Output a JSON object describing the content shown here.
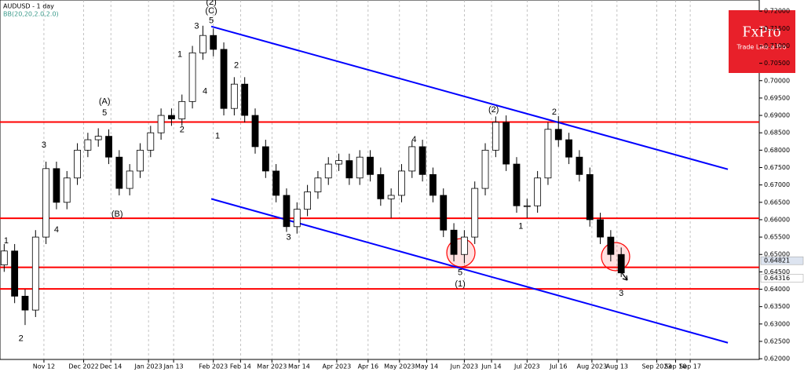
{
  "chart_data": {
    "type": "candlestick",
    "title": "AUDUSD - 1 day",
    "subtitle": "BB(20,20,2.0,2.0)",
    "x": [
      "2022-10-24",
      "2022-10-29",
      "2022-11-03",
      "2022-11-08",
      "2022-11-13",
      "2022-11-18",
      "2022-11-23",
      "2022-11-28",
      "2022-12-03",
      "2022-12-08",
      "2022-12-13",
      "2022-12-18",
      "2022-12-23",
      "2022-12-28",
      "2023-01-02",
      "2023-01-07",
      "2023-01-12",
      "2023-01-17",
      "2023-01-22",
      "2023-01-27",
      "2023-02-01",
      "2023-02-06",
      "2023-02-11",
      "2023-02-16",
      "2023-02-21",
      "2023-02-26",
      "2023-03-03",
      "2023-03-08",
      "2023-03-13",
      "2023-03-18",
      "2023-03-23",
      "2023-03-28",
      "2023-04-02",
      "2023-04-07",
      "2023-04-12",
      "2023-04-17",
      "2023-04-22",
      "2023-04-27",
      "2023-05-02",
      "2023-05-07",
      "2023-05-12",
      "2023-05-17",
      "2023-05-22",
      "2023-05-27",
      "2023-06-01",
      "2023-06-06",
      "2023-06-11",
      "2023-06-16",
      "2023-06-21",
      "2023-06-26",
      "2023-07-01",
      "2023-07-06",
      "2023-07-11",
      "2023-07-16",
      "2023-07-21",
      "2023-07-26",
      "2023-07-31",
      "2023-08-05",
      "2023-08-10",
      "2023-08-15"
    ],
    "open": [
      0.647,
      0.651,
      0.638,
      0.634,
      0.655,
      0.6747,
      0.665,
      0.672,
      0.68,
      0.683,
      0.684,
      0.678,
      0.669,
      0.674,
      0.68,
      0.685,
      0.69,
      0.689,
      0.694,
      0.708,
      0.713,
      0.709,
      0.692,
      0.699,
      0.69,
      0.681,
      0.674,
      0.667,
      0.658,
      0.663,
      0.668,
      0.672,
      0.676,
      0.677,
      0.672,
      0.678,
      0.673,
      0.666,
      0.667,
      0.674,
      0.681,
      0.673,
      0.667,
      0.657,
      0.65,
      0.655,
      0.669,
      0.68,
      0.688,
      0.676,
      0.664,
      0.664,
      0.672,
      0.686,
      0.683,
      0.678,
      0.673,
      0.66,
      0.655,
      0.65
    ],
    "high": [
      0.653,
      0.653,
      0.64,
      0.657,
      0.6767,
      0.6767,
      0.674,
      0.682,
      0.685,
      0.6863,
      0.686,
      0.68,
      0.676,
      0.682,
      0.687,
      0.692,
      0.692,
      0.696,
      0.71,
      0.7158,
      0.715,
      0.711,
      0.701,
      0.701,
      0.692,
      0.683,
      0.676,
      0.669,
      0.665,
      0.67,
      0.674,
      0.678,
      0.679,
      0.679,
      0.68,
      0.68,
      0.675,
      0.669,
      0.676,
      0.6827,
      0.683,
      0.675,
      0.669,
      0.659,
      0.657,
      0.671,
      0.682,
      0.6897,
      0.69,
      0.678,
      0.666,
      0.674,
      0.688,
      0.6898,
      0.685,
      0.68,
      0.675,
      0.662,
      0.657,
      0.652
    ],
    "low": [
      0.645,
      0.636,
      0.6297,
      0.632,
      0.653,
      0.663,
      0.663,
      0.67,
      0.678,
      0.681,
      0.676,
      0.667,
      0.667,
      0.672,
      0.678,
      0.683,
      0.687,
      0.687,
      0.692,
      0.706,
      0.707,
      0.69,
      0.69,
      0.688,
      0.679,
      0.672,
      0.665,
      0.6565,
      0.656,
      0.661,
      0.666,
      0.67,
      0.674,
      0.67,
      0.67,
      0.671,
      0.664,
      0.6605,
      0.665,
      0.672,
      0.671,
      0.665,
      0.655,
      0.648,
      0.6475,
      0.653,
      0.667,
      0.678,
      0.674,
      0.662,
      0.6605,
      0.662,
      0.67,
      0.681,
      0.676,
      0.671,
      0.658,
      0.653,
      0.648,
      0.6435
    ],
    "close": [
      0.651,
      0.638,
      0.634,
      0.655,
      0.6747,
      0.665,
      0.672,
      0.68,
      0.683,
      0.684,
      0.678,
      0.669,
      0.674,
      0.68,
      0.685,
      0.69,
      0.689,
      0.694,
      0.708,
      0.713,
      0.709,
      0.692,
      0.699,
      0.69,
      0.681,
      0.674,
      0.667,
      0.658,
      0.663,
      0.668,
      0.672,
      0.676,
      0.677,
      0.672,
      0.678,
      0.673,
      0.666,
      0.667,
      0.674,
      0.681,
      0.673,
      0.667,
      0.657,
      0.65,
      0.655,
      0.669,
      0.68,
      0.688,
      0.676,
      0.664,
      0.664,
      0.672,
      0.686,
      0.683,
      0.678,
      0.673,
      0.66,
      0.655,
      0.65,
      0.6447
    ],
    "xlim": [
      "2022-10-22",
      "2023-10-20"
    ],
    "xticks": [
      {
        "value": "2022-11-12",
        "label": "Nov 12"
      },
      {
        "value": "2022-12-01",
        "label": "Dec 2022"
      },
      {
        "value": "2022-12-14",
        "label": "Dec 14"
      },
      {
        "value": "2023-01-01",
        "label": "Jan 2023"
      },
      {
        "value": "2023-01-13",
        "label": "Jan 13"
      },
      {
        "value": "2023-02-01",
        "label": "Feb 2023"
      },
      {
        "value": "2023-02-14",
        "label": "Feb 14"
      },
      {
        "value": "2023-03-01",
        "label": "Mar 2023"
      },
      {
        "value": "2023-03-14",
        "label": "Mar 14"
      },
      {
        "value": "2023-04-01",
        "label": "Apr 2023"
      },
      {
        "value": "2023-04-16",
        "label": "Apr 16"
      },
      {
        "value": "2023-05-01",
        "label": "May 2023"
      },
      {
        "value": "2023-05-14",
        "label": "May 14"
      },
      {
        "value": "2023-06-01",
        "label": "Jun 2023"
      },
      {
        "value": "2023-06-14",
        "label": "Jun 14"
      },
      {
        "value": "2023-07-01",
        "label": "Jul 2023"
      },
      {
        "value": "2023-07-16",
        "label": "Jul 16"
      },
      {
        "value": "2023-08-01",
        "label": "Aug 2023"
      },
      {
        "value": "2023-08-13",
        "label": "Aug 13"
      },
      {
        "value": "2023-09-01",
        "label": "Sep 2023"
      },
      {
        "value": "2023-09-10",
        "label": "Sep 10"
      },
      {
        "value": "2023-09-17",
        "label": "Sep 17"
      }
    ],
    "ylim": [
      0.6198,
      0.7232
    ],
    "yticks": [
      {
        "value": 0.72,
        "label": "0.72000"
      },
      {
        "value": 0.715,
        "label": "0.71500"
      },
      {
        "value": 0.71,
        "label": "0.71000"
      },
      {
        "value": 0.705,
        "label": "0.70500"
      },
      {
        "value": 0.7,
        "label": "0.70000"
      },
      {
        "value": 0.695,
        "label": "0.69500"
      },
      {
        "value": 0.69,
        "label": "0.69000"
      },
      {
        "value": 0.685,
        "label": "0.68500"
      },
      {
        "value": 0.68,
        "label": "0.68000"
      },
      {
        "value": 0.675,
        "label": "0.67500"
      },
      {
        "value": 0.67,
        "label": "0.67000"
      },
      {
        "value": 0.665,
        "label": "0.66500"
      },
      {
        "value": 0.66,
        "label": "0.66000"
      },
      {
        "value": 0.655,
        "label": "0.65500"
      },
      {
        "value": 0.65,
        "label": "0.65000"
      },
      {
        "value": 0.645,
        "label": "0.64500"
      },
      {
        "value": 0.64,
        "label": "0.64000"
      },
      {
        "value": 0.635,
        "label": "0.63500"
      },
      {
        "value": 0.63,
        "label": "0.63000"
      },
      {
        "value": 0.625,
        "label": "0.62500"
      },
      {
        "value": 0.62,
        "label": "0.62000"
      }
    ],
    "price_tags": [
      {
        "value": 0.64821,
        "label": "0.64821"
      },
      {
        "value": 0.64316,
        "label": "0.64316"
      }
    ],
    "levels": [
      0.6881,
      0.6604,
      0.6463,
      0.6401
    ],
    "level_color": "#ff0000",
    "channel_color": "#0000ff",
    "channel": [
      {
        "x": [
          "2023-01-31",
          "2023-10-05"
        ],
        "y": [
          0.7156,
          0.6745
        ]
      },
      {
        "x": [
          "2023-01-31",
          "2023-10-05"
        ],
        "y": [
          0.666,
          0.6246
        ]
      }
    ],
    "grid": "x",
    "annotations": [
      {
        "text": "1",
        "x": "2022-10-25",
        "y": 0.6539
      },
      {
        "text": "2",
        "x": "2022-11-01",
        "y": 0.6258
      },
      {
        "text": "3",
        "x": "2022-11-12",
        "y": 0.6814
      },
      {
        "text": "4",
        "x": "2022-11-18",
        "y": 0.657
      },
      {
        "text": "(A)",
        "x": "2022-12-11",
        "y": 0.6939
      },
      {
        "text": "5",
        "x": "2022-12-11",
        "y": 0.6907
      },
      {
        "text": "(B)",
        "x": "2022-12-17",
        "y": 0.6616
      },
      {
        "text": "1",
        "x": "2023-01-16",
        "y": 0.7075
      },
      {
        "text": "3",
        "x": "2023-01-24",
        "y": 0.7156
      },
      {
        "text": "4",
        "x": "2023-01-28",
        "y": 0.6969
      },
      {
        "text": "2",
        "x": "2023-01-17",
        "y": 0.6858
      },
      {
        "text": "(2)",
        "x": "2023-01-31",
        "y": 0.7225
      },
      {
        "text": "(C)",
        "x": "2023-01-31",
        "y": 0.72
      },
      {
        "text": "5",
        "x": "2023-01-31",
        "y": 0.7172
      },
      {
        "text": "1",
        "x": "2023-02-03",
        "y": 0.684
      },
      {
        "text": "2",
        "x": "2023-02-12",
        "y": 0.7043
      },
      {
        "text": "3",
        "x": "2023-03-09",
        "y": 0.6549
      },
      {
        "text": "4",
        "x": "2023-05-08",
        "y": 0.683
      },
      {
        "text": "5",
        "x": "2023-05-30",
        "y": 0.6447
      },
      {
        "text": "(1)",
        "x": "2023-05-30",
        "y": 0.6415
      },
      {
        "text": "(2)",
        "x": "2023-06-15",
        "y": 0.6916
      },
      {
        "text": "1",
        "x": "2023-06-28",
        "y": 0.6581
      },
      {
        "text": "2",
        "x": "2023-07-14",
        "y": 0.6909
      },
      {
        "text": "3",
        "x": "2023-08-15",
        "y": 0.6387
      }
    ]
  },
  "logo": {
    "name": "FxPro",
    "tagline": "Trade Like a Pro"
  }
}
